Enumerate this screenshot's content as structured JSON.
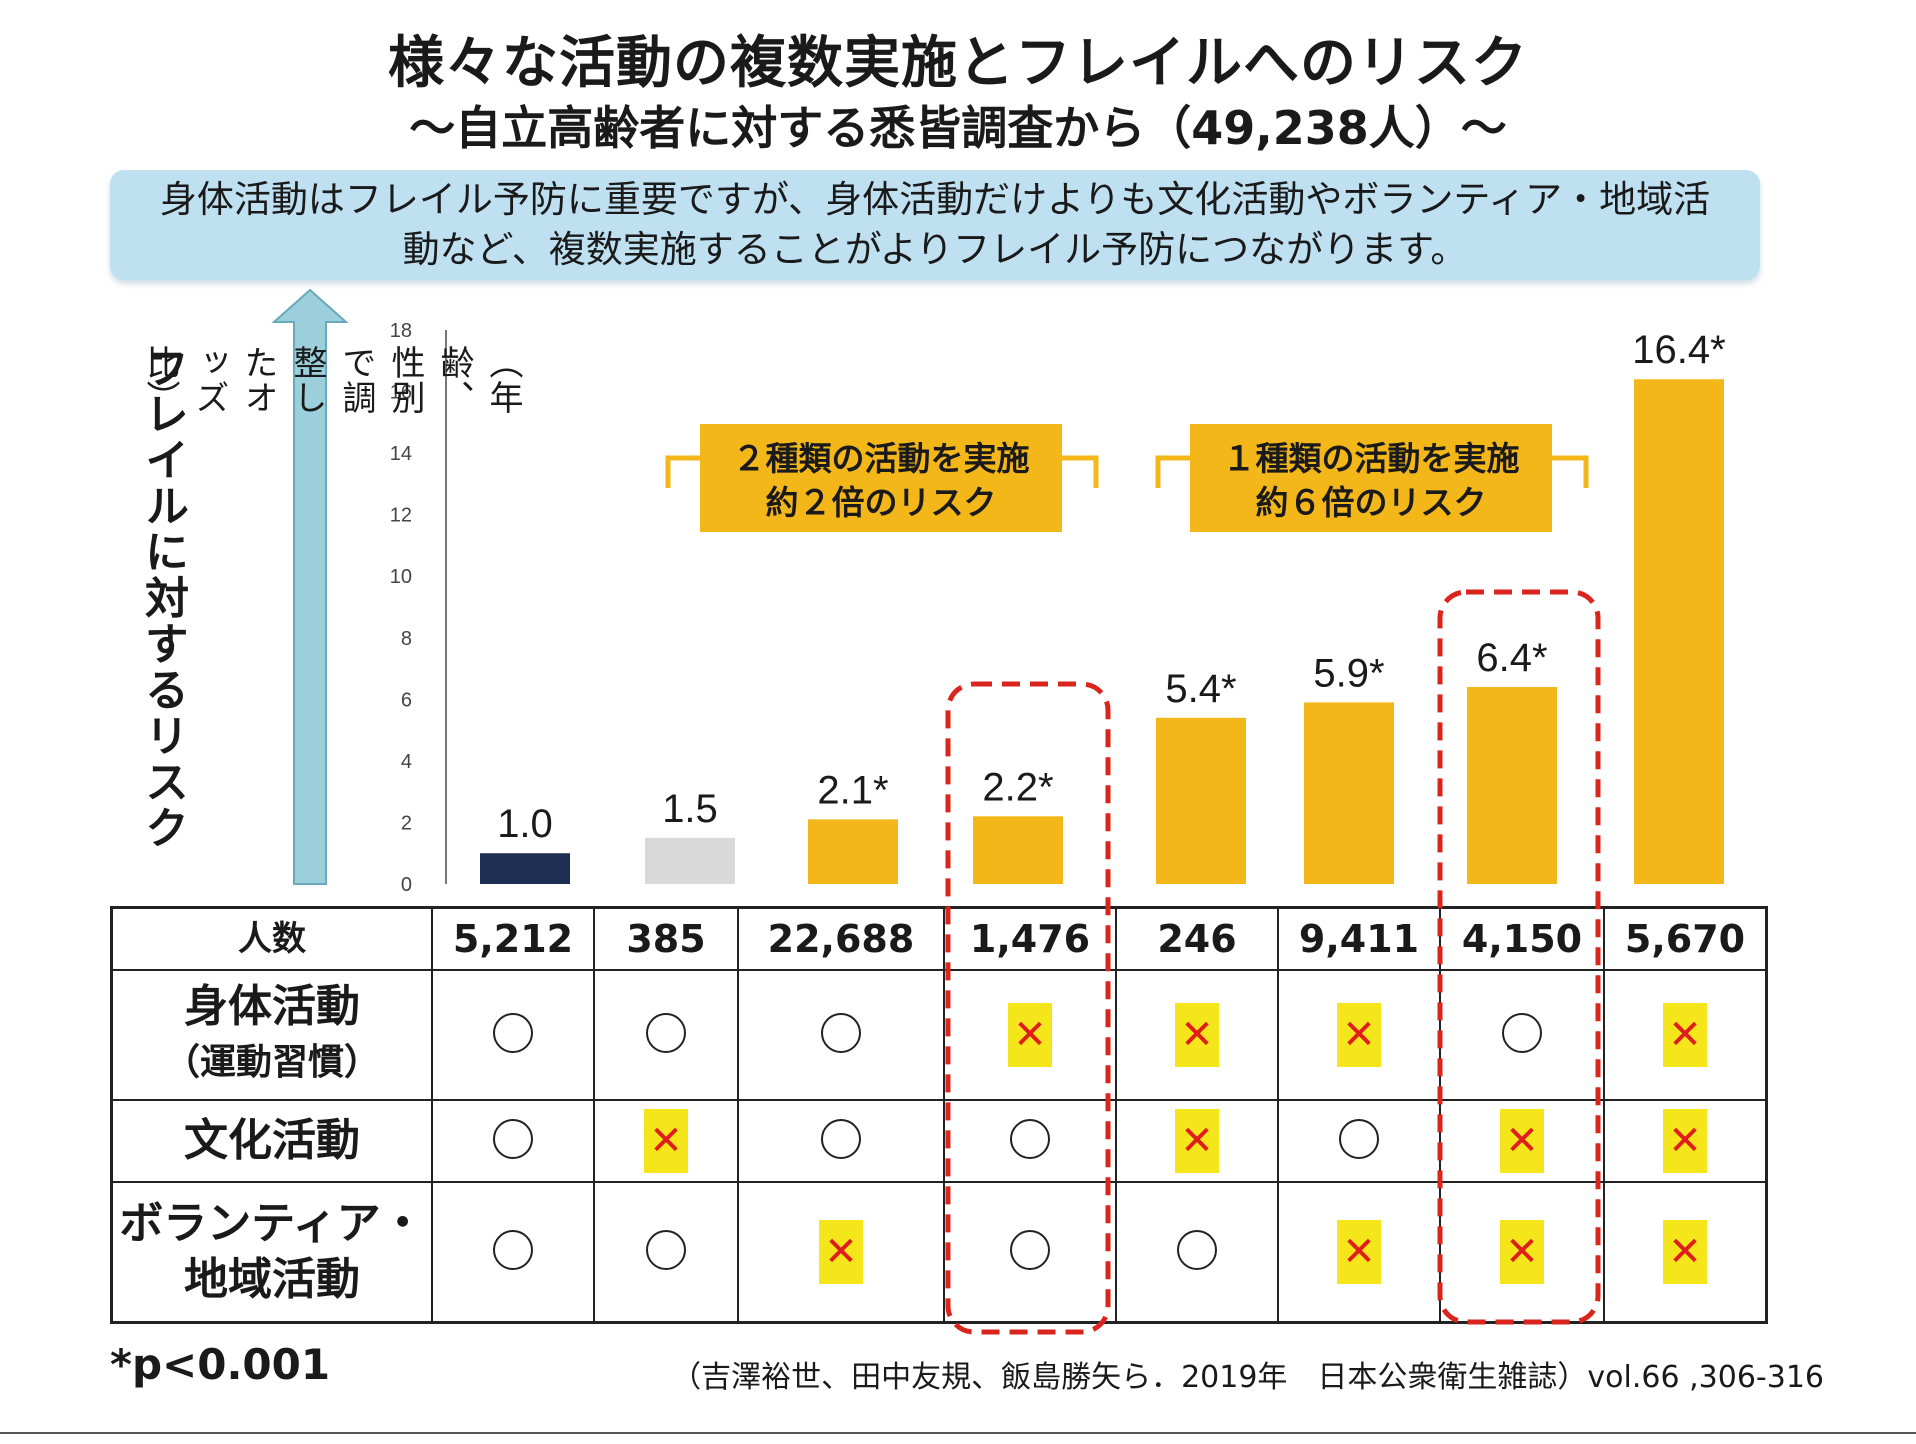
{
  "title": "様々な活動の複数実施とフレイルへのリスク",
  "subtitle": "～自立高齢者に対する悉皆調査から（49,238人）～",
  "note": "身体活動はフレイル予防に重要ですが、身体活動だけよりも文化活動やボランティア・地域活動など、複数実施することがよりフレイル予防につながります。",
  "y_title": "フレイルに対するリスク",
  "y_subtitle": "（年齢、性別で調整したオッズ比）",
  "colors": {
    "navy": "#1c2f52",
    "gray": "#d9d9d9",
    "gold": "#f3b71a",
    "red_dash": "#d9251d",
    "arrow": "#9ccfdc"
  },
  "annotations": [
    {
      "line1": "２種類の活動を実施",
      "line2": "約２倍のリスク"
    },
    {
      "line1": "１種類の活動を実施",
      "line2": "約６倍のリスク"
    }
  ],
  "chart_data": {
    "type": "bar",
    "ylim": [
      0,
      18
    ],
    "yticks": [
      "0",
      "2",
      "4",
      "6",
      "8",
      "10",
      "12",
      "14",
      "16",
      "18"
    ],
    "values": [
      1.0,
      1.5,
      2.1,
      2.2,
      5.4,
      5.9,
      6.4,
      16.4
    ],
    "labels": [
      "1.0",
      "1.5",
      "2.1*",
      "2.2*",
      "5.4*",
      "5.9*",
      "6.4*",
      "16.4*"
    ],
    "bar_colors": [
      "#1c2f52",
      "#d9d9d9",
      "#f3b71a",
      "#f3b71a",
      "#f3b71a",
      "#f3b71a",
      "#f3b71a",
      "#f3b71a"
    ],
    "highlighted": [
      3,
      6
    ]
  },
  "table": {
    "count_header": "人数",
    "counts": [
      "5,212",
      "385",
      "22,688",
      "1,476",
      "246",
      "9,411",
      "4,150",
      "5,670"
    ],
    "rows": [
      {
        "label1": "身体活動",
        "label2": "（運動習慣）",
        "marks": [
          "o",
          "o",
          "o",
          "x",
          "x",
          "x",
          "o",
          "x"
        ]
      },
      {
        "label1": "文化活動",
        "label2": "",
        "marks": [
          "o",
          "x",
          "o",
          "o",
          "x",
          "o",
          "x",
          "x"
        ]
      },
      {
        "label1": "ボランティア・",
        "label2": "地域活動",
        "marks": [
          "o",
          "o",
          "x",
          "o",
          "o",
          "x",
          "x",
          "x"
        ]
      }
    ]
  },
  "p_note": "*p<0.001",
  "citation": "（吉澤裕世、田中友規、飯島勝矢ら．2019年　日本公衆衛生雑誌）vol.66 ,306-316"
}
